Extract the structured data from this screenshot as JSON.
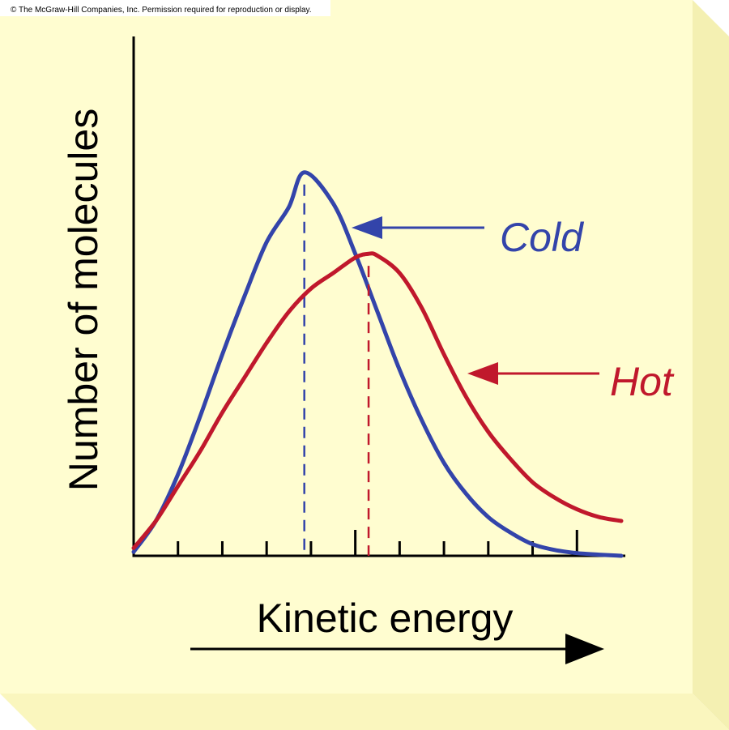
{
  "copyright": "© The McGraw-Hill Companies, Inc. Permission required for reproduction or display.",
  "colors": {
    "card_face": "#FFFDD0",
    "card_side": "#F4F0B2",
    "card_bottom": "#FAF6BE",
    "axis": "#000000",
    "cold": "#3344AA",
    "hot": "#C0182C"
  },
  "chart_data": {
    "type": "line",
    "title": "",
    "xlabel": "Kinetic energy",
    "ylabel": "Number of molecules",
    "xlim": [
      0,
      11
    ],
    "ylim": [
      0,
      10
    ],
    "x_ticks": [
      1,
      2,
      3,
      4,
      5,
      6,
      7,
      8,
      9,
      10
    ],
    "x_arrow": true,
    "series": [
      {
        "name": "Cold",
        "color": "#3344AA",
        "peak_x": 3.85,
        "x": [
          0,
          0.5,
          1,
          1.5,
          2,
          2.5,
          3,
          3.5,
          3.85,
          4.5,
          5,
          5.5,
          6,
          6.5,
          7,
          7.5,
          8,
          8.5,
          9,
          9.5,
          10,
          10.5,
          11
        ],
        "y": [
          0.1,
          0.9,
          2.1,
          3.6,
          5.2,
          6.7,
          8.1,
          9.0,
          9.9,
          9.1,
          7.8,
          6.3,
          4.8,
          3.5,
          2.4,
          1.6,
          1.0,
          0.6,
          0.3,
          0.15,
          0.07,
          0.03,
          0.0
        ]
      },
      {
        "name": "Hot",
        "color": "#C0182C",
        "peak_x": 5.3,
        "x": [
          0,
          0.5,
          1,
          1.5,
          2,
          2.5,
          3,
          3.5,
          4,
          4.5,
          5,
          5.3,
          5.5,
          6,
          6.5,
          7,
          7.5,
          8,
          8.5,
          9,
          9.5,
          10,
          10.5,
          11
        ],
        "y": [
          0.2,
          0.9,
          1.8,
          2.7,
          3.7,
          4.6,
          5.5,
          6.3,
          6.9,
          7.3,
          7.7,
          7.8,
          7.75,
          7.3,
          6.4,
          5.2,
          4.1,
          3.2,
          2.5,
          1.9,
          1.5,
          1.2,
          1.0,
          0.9
        ]
      }
    ]
  }
}
